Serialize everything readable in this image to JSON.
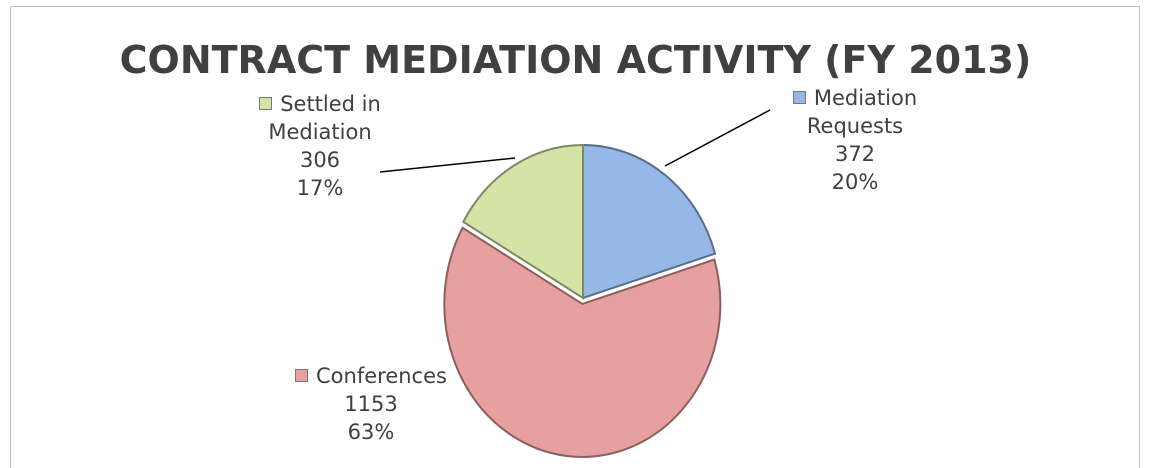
{
  "chart_data": {
    "type": "pie",
    "title": "CONTRACT MEDIATION ACTIVITY (FY 2013)",
    "categories": [
      "Mediation Requests",
      "Conferences",
      "Settled in Mediation"
    ],
    "values": [
      372,
      1153,
      306
    ],
    "percents": [
      20,
      63,
      17
    ],
    "percent_labels": [
      "20%",
      "63%",
      "17%"
    ],
    "colors": [
      "#95b8e6",
      "#e6a09f",
      "#d3e4a6"
    ]
  }
}
